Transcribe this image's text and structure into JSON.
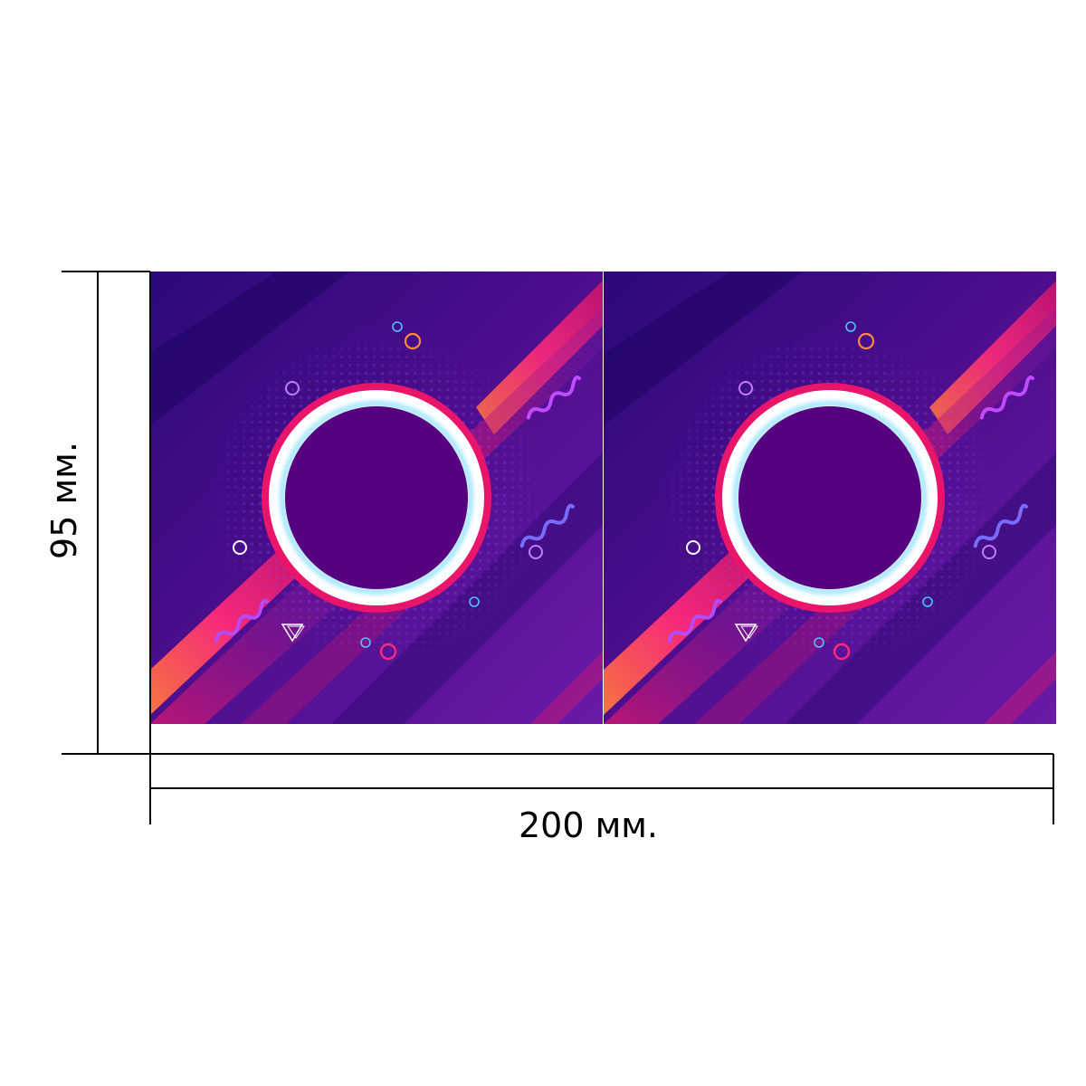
{
  "dimensions": {
    "height_label": "95 мм.",
    "width_label": "200 мм."
  },
  "panels": {
    "count": 2,
    "background_colors": [
      "#3a0a6e",
      "#5a1a9a",
      "#ff2a7a",
      "#ff7a3a"
    ],
    "ring_color": "#ffffff",
    "ring_glow_color": "#6fd8ff",
    "outer_rim_color": "#e8156a",
    "center_color": "#560280"
  }
}
